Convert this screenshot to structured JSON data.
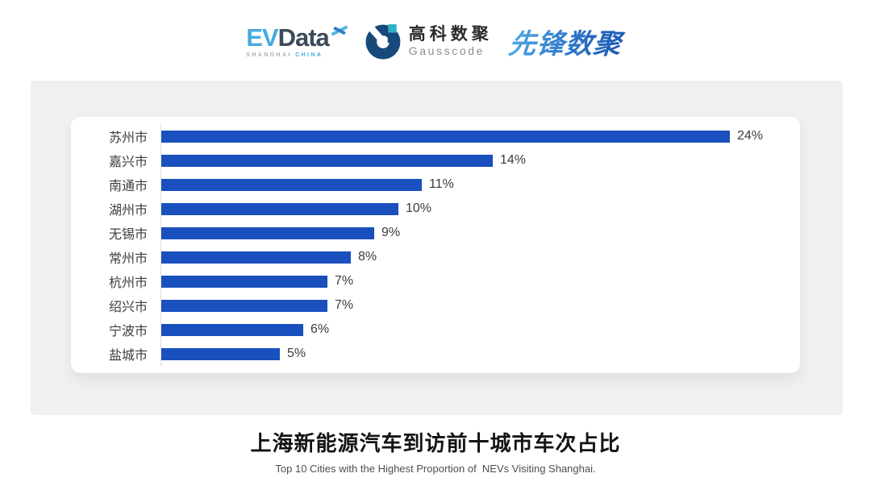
{
  "header": {
    "evdata": {
      "ev": "EV",
      "data": "Data",
      "sub_left": "SHANGHAI",
      "sub_right": "CHINA"
    },
    "gausscode": {
      "cn": "高科数聚",
      "en": "Gausscode"
    },
    "pioneer": {
      "text": "先锋数聚"
    }
  },
  "chart_data": {
    "type": "bar",
    "orientation": "horizontal",
    "title": "",
    "categories": [
      "苏州市",
      "嘉兴市",
      "南通市",
      "湖州市",
      "无锡市",
      "常州市",
      "杭州市",
      "绍兴市",
      "宁波市",
      "盐城市"
    ],
    "values": [
      24,
      14,
      11,
      10,
      9,
      8,
      7,
      7,
      6,
      5
    ],
    "value_labels": [
      "24%",
      "14%",
      "11%",
      "10%",
      "9%",
      "8%",
      "7%",
      "7%",
      "6%",
      "5%"
    ],
    "xlim": [
      0,
      24
    ],
    "grid": false,
    "legend": false,
    "bar_color": "#1A50BE",
    "axis_color": "#DCDCDC",
    "label_color": "#3C3C3C"
  },
  "footer": {
    "title": "上海新能源汽车到访前十城市车次占比",
    "subtitle": "Top 10 Cities with the Highest Proportion of  NEVs Visiting Shanghai."
  },
  "colors": {
    "panel_bg": "#F0F0F0",
    "card_bg": "#FFFFFF",
    "accent_blue": "#1A50BE",
    "evdata_light_blue": "#45AADF",
    "evdata_dark": "#3D4A5B",
    "gauss_navy": "#17497B",
    "gauss_teal": "#2FB3C3",
    "pioneer_blue_light": "#55AEE8",
    "pioneer_blue_dark": "#1B55B2"
  }
}
